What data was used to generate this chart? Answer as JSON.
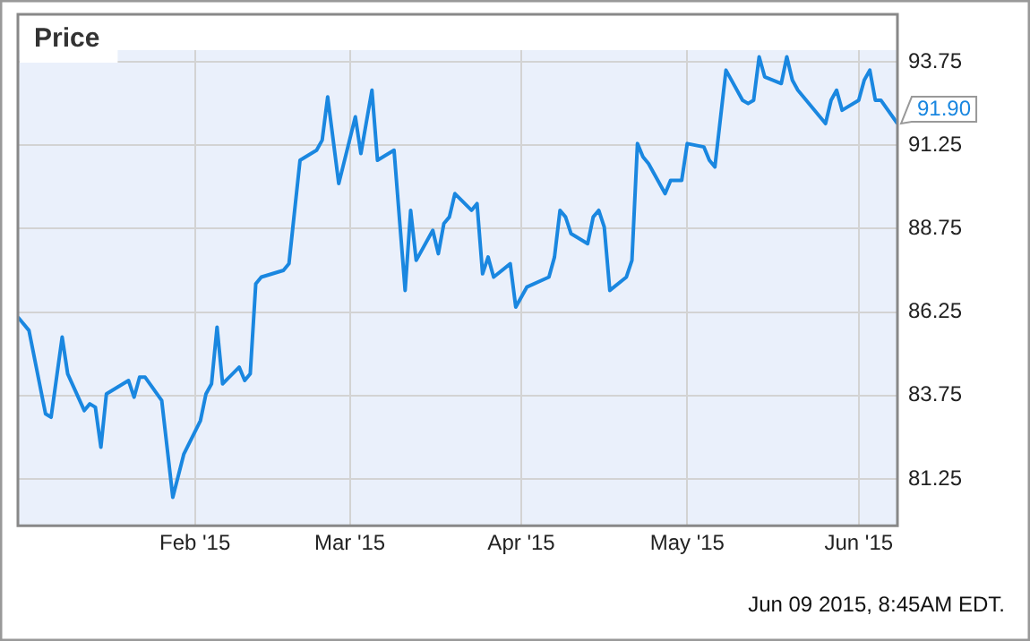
{
  "chart_data": {
    "type": "line",
    "title": "Price",
    "x": [
      "2014-12-31",
      "2015-01-02",
      "2015-01-05",
      "2015-01-06",
      "2015-01-08",
      "2015-01-09",
      "2015-01-12",
      "2015-01-13",
      "2015-01-14",
      "2015-01-15",
      "2015-01-16",
      "2015-01-20",
      "2015-01-21",
      "2015-01-22",
      "2015-01-23",
      "2015-01-26",
      "2015-01-28",
      "2015-01-30",
      "2015-02-02",
      "2015-02-03",
      "2015-02-04",
      "2015-02-05",
      "2015-02-06",
      "2015-02-09",
      "2015-02-10",
      "2015-02-11",
      "2015-02-12",
      "2015-02-13",
      "2015-02-17",
      "2015-02-18",
      "2015-02-20",
      "2015-02-23",
      "2015-02-24",
      "2015-02-25",
      "2015-02-27",
      "2015-03-02",
      "2015-03-03",
      "2015-03-05",
      "2015-03-06",
      "2015-03-09",
      "2015-03-11",
      "2015-03-12",
      "2015-03-13",
      "2015-03-16",
      "2015-03-17",
      "2015-03-18",
      "2015-03-19",
      "2015-03-20",
      "2015-03-23",
      "2015-03-24",
      "2015-03-25",
      "2015-03-26",
      "2015-03-27",
      "2015-03-30",
      "2015-03-31",
      "2015-04-02",
      "2015-04-06",
      "2015-04-07",
      "2015-04-08",
      "2015-04-09",
      "2015-04-10",
      "2015-04-13",
      "2015-04-14",
      "2015-04-15",
      "2015-04-16",
      "2015-04-17",
      "2015-04-20",
      "2015-04-21",
      "2015-04-22",
      "2015-04-23",
      "2015-04-24",
      "2015-04-27",
      "2015-04-28",
      "2015-04-30",
      "2015-05-01",
      "2015-05-04",
      "2015-05-05",
      "2015-05-06",
      "2015-05-08",
      "2015-05-11",
      "2015-05-12",
      "2015-05-13",
      "2015-05-14",
      "2015-05-15",
      "2015-05-18",
      "2015-05-19",
      "2015-05-20",
      "2015-05-21",
      "2015-05-26",
      "2015-05-27",
      "2015-05-28",
      "2015-05-29",
      "2015-06-01",
      "2015-06-02",
      "2015-06-03",
      "2015-06-04",
      "2015-06-05",
      "2015-06-08"
    ],
    "series": [
      {
        "color": "#1a87e0",
        "values": [
          86.1,
          85.7,
          83.2,
          83.1,
          85.5,
          84.4,
          83.3,
          83.5,
          83.4,
          82.2,
          83.8,
          84.2,
          83.7,
          84.3,
          84.3,
          83.6,
          80.7,
          82.0,
          83.0,
          83.8,
          84.1,
          85.8,
          84.1,
          84.6,
          84.2,
          84.4,
          87.1,
          87.3,
          87.5,
          87.7,
          90.8,
          91.1,
          91.4,
          92.7,
          90.1,
          92.1,
          91.0,
          92.9,
          90.8,
          91.1,
          86.9,
          89.3,
          87.8,
          88.7,
          88.0,
          88.9,
          89.1,
          89.8,
          89.3,
          89.5,
          87.4,
          87.9,
          87.3,
          87.7,
          86.4,
          87.0,
          87.3,
          87.9,
          89.3,
          89.1,
          88.6,
          88.3,
          89.1,
          89.3,
          88.8,
          86.9,
          87.3,
          87.8,
          91.3,
          90.9,
          90.7,
          89.8,
          90.2,
          90.2,
          91.3,
          91.2,
          90.8,
          90.6,
          93.5,
          92.6,
          92.5,
          92.6,
          93.9,
          93.3,
          93.1,
          93.9,
          93.2,
          92.9,
          91.9,
          92.6,
          92.9,
          92.3,
          92.6,
          93.2,
          93.5,
          92.6,
          92.6,
          91.9
        ]
      }
    ],
    "xlim": [
      "2014-12-31",
      "2015-06-08"
    ],
    "xticks": [
      {
        "value": "2015-02-01",
        "label": "Feb '15"
      },
      {
        "value": "2015-03-01",
        "label": "Mar '15"
      },
      {
        "value": "2015-04-01",
        "label": "Apr '15"
      },
      {
        "value": "2015-05-01",
        "label": "May '15"
      },
      {
        "value": "2015-06-01",
        "label": "Jun '15"
      }
    ],
    "ylim": [
      79.85,
      94.1
    ],
    "yticks": [
      81.25,
      83.75,
      86.25,
      88.75,
      91.25,
      93.75
    ],
    "grid": true,
    "marker": "none",
    "annotations": [
      {
        "text": "91.90",
        "x": "2015-06-08",
        "y": 91.9
      },
      "Jun 09 2015, 8:45AM EDT."
    ]
  }
}
